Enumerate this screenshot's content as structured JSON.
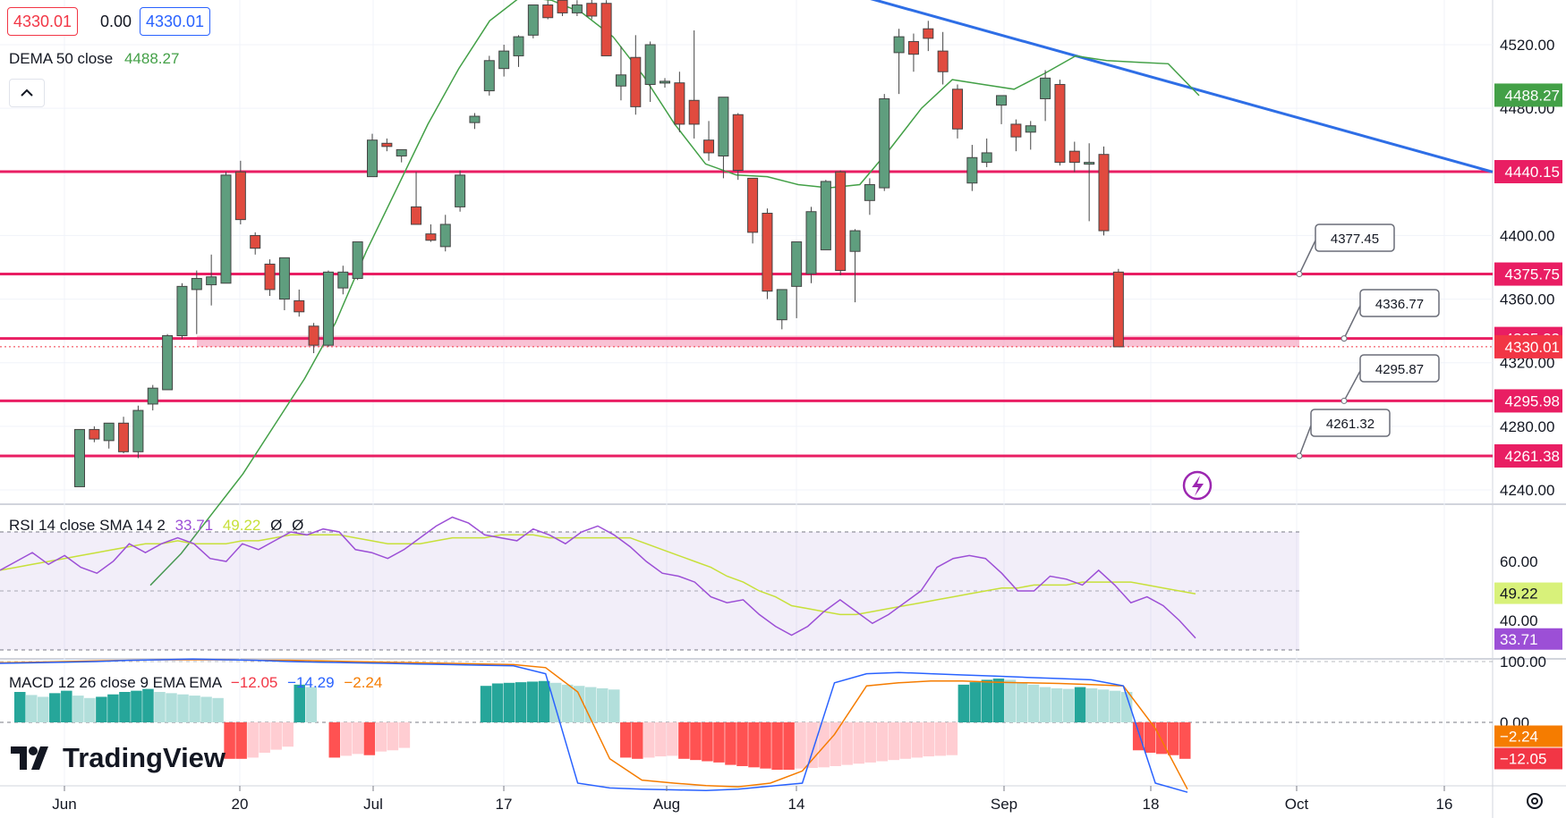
{
  "header": {
    "open_value": "4330.01",
    "change_value": "0.00",
    "close_value": "4330.01"
  },
  "indicators": {
    "dema": {
      "label": "DEMA 50 close",
      "value": "4488.27",
      "color": "#43a047"
    },
    "rsi": {
      "label": "RSI 14 close SMA 14 2",
      "value": "33.71",
      "sma_value": "49.22",
      "extra1": "Ø",
      "extra2": "Ø",
      "color": "#9c4fd6",
      "sma_color": "#c7e03a"
    },
    "macd": {
      "label": "MACD 12 26 close 9 EMA EMA",
      "hist_value": "−12.05",
      "macd_value": "−14.29",
      "signal_value": "−2.24",
      "macd_color": "#2962ff",
      "signal_color": "#f57c00"
    }
  },
  "brand": {
    "name": "TradingView"
  },
  "colors": {
    "up": "#5f9e7e",
    "down": "#e04b3f",
    "level_line": "#e91e63",
    "trend_line": "#2e6ee6",
    "grid": "#f0f3fa"
  },
  "chart_data": [
    {
      "type": "candlestick",
      "title": "",
      "x_tick_labels": [
        "Jun",
        "20",
        "Jul",
        "17",
        "Aug",
        "14",
        "Sep",
        "18",
        "Oct",
        "16"
      ],
      "y_ticks": [
        "4520.00",
        "4480.00",
        "4400.00",
        "4360.00",
        "4320.00",
        "4280.00",
        "4240.00"
      ],
      "ylim": [
        4228,
        4542
      ],
      "candles": [
        {
          "o": 4242,
          "h": 4278,
          "l": 4242,
          "c": 4278
        },
        {
          "o": 4278,
          "h": 4280,
          "l": 4270,
          "c": 4272
        },
        {
          "o": 4271,
          "h": 4282,
          "l": 4266,
          "c": 4282
        },
        {
          "o": 4282,
          "h": 4286,
          "l": 4263,
          "c": 4264
        },
        {
          "o": 4264,
          "h": 4293,
          "l": 4260,
          "c": 4290
        },
        {
          "o": 4294,
          "h": 4306,
          "l": 4290,
          "c": 4304
        },
        {
          "o": 4303,
          "h": 4338,
          "l": 4303,
          "c": 4337
        },
        {
          "o": 4337,
          "h": 4370,
          "l": 4335,
          "c": 4368
        },
        {
          "o": 4366,
          "h": 4378,
          "l": 4338,
          "c": 4373
        },
        {
          "o": 4369,
          "h": 4388,
          "l": 4356,
          "c": 4374
        },
        {
          "o": 4370,
          "h": 4440,
          "l": 4370,
          "c": 4438
        },
        {
          "o": 4440,
          "h": 4447,
          "l": 4407,
          "c": 4410
        },
        {
          "o": 4400,
          "h": 4402,
          "l": 4388,
          "c": 4392
        },
        {
          "o": 4382,
          "h": 4385,
          "l": 4362,
          "c": 4366
        },
        {
          "o": 4360,
          "h": 4386,
          "l": 4353,
          "c": 4386
        },
        {
          "o": 4359,
          "h": 4366,
          "l": 4349,
          "c": 4352
        },
        {
          "o": 4343,
          "h": 4345,
          "l": 4326,
          "c": 4331
        },
        {
          "o": 4331,
          "h": 4378,
          "l": 4330,
          "c": 4377
        },
        {
          "o": 4367,
          "h": 4381,
          "l": 4363,
          "c": 4377
        },
        {
          "o": 4373,
          "h": 4396,
          "l": 4372,
          "c": 4396
        },
        {
          "o": 4437,
          "h": 4464,
          "l": 4437,
          "c": 4460
        },
        {
          "o": 4458,
          "h": 4461,
          "l": 4453,
          "c": 4456
        },
        {
          "o": 4450,
          "h": 4453,
          "l": 4446,
          "c": 4454
        },
        {
          "o": 4418,
          "h": 4440,
          "l": 4408,
          "c": 4407
        },
        {
          "o": 4401,
          "h": 4407,
          "l": 4396,
          "c": 4397
        },
        {
          "o": 4393,
          "h": 4413,
          "l": 4390,
          "c": 4407
        },
        {
          "o": 4418,
          "h": 4441,
          "l": 4415,
          "c": 4438
        },
        {
          "o": 4471,
          "h": 4477,
          "l": 4467,
          "c": 4475
        },
        {
          "o": 4491,
          "h": 4513,
          "l": 4488,
          "c": 4510
        },
        {
          "o": 4505,
          "h": 4520,
          "l": 4500,
          "c": 4516
        },
        {
          "o": 4513,
          "h": 4526,
          "l": 4506,
          "c": 4525
        },
        {
          "o": 4526,
          "h": 4545,
          "l": 4524,
          "c": 4545
        },
        {
          "o": 4545,
          "h": 4548,
          "l": 4536,
          "c": 4537
        },
        {
          "o": 4548,
          "h": 4550,
          "l": 4538,
          "c": 4540
        },
        {
          "o": 4540,
          "h": 4548,
          "l": 4538,
          "c": 4545
        },
        {
          "o": 4546,
          "h": 4550,
          "l": 4536,
          "c": 4538
        },
        {
          "o": 4546,
          "h": 4548,
          "l": 4514,
          "c": 4513
        },
        {
          "o": 4494,
          "h": 4519,
          "l": 4485,
          "c": 4501
        },
        {
          "o": 4512,
          "h": 4526,
          "l": 4476,
          "c": 4481
        },
        {
          "o": 4495,
          "h": 4522,
          "l": 4484,
          "c": 4520
        },
        {
          "o": 4497,
          "h": 4499,
          "l": 4493,
          "c": 4497
        },
        {
          "o": 4496,
          "h": 4503,
          "l": 4465,
          "c": 4470
        },
        {
          "o": 4485,
          "h": 4529,
          "l": 4461,
          "c": 4470
        },
        {
          "o": 4460,
          "h": 4472,
          "l": 4447,
          "c": 4452
        },
        {
          "o": 4450,
          "h": 4487,
          "l": 4436,
          "c": 4487
        },
        {
          "o": 4476,
          "h": 4477,
          "l": 4435,
          "c": 4441
        },
        {
          "o": 4436,
          "h": 4436,
          "l": 4395,
          "c": 4402
        },
        {
          "o": 4414,
          "h": 4417,
          "l": 4360,
          "c": 4365
        },
        {
          "o": 4347,
          "h": 4366,
          "l": 4341,
          "c": 4366
        },
        {
          "o": 4368,
          "h": 4396,
          "l": 4348,
          "c": 4396
        },
        {
          "o": 4376,
          "h": 4418,
          "l": 4370,
          "c": 4415
        },
        {
          "o": 4391,
          "h": 4435,
          "l": 4391,
          "c": 4434
        },
        {
          "o": 4440,
          "h": 4441,
          "l": 4375,
          "c": 4378
        },
        {
          "o": 4390,
          "h": 4404,
          "l": 4358,
          "c": 4403
        },
        {
          "o": 4422,
          "h": 4436,
          "l": 4413,
          "c": 4432
        },
        {
          "o": 4430,
          "h": 4489,
          "l": 4428,
          "c": 4486
        },
        {
          "o": 4515,
          "h": 4530,
          "l": 4489,
          "c": 4525
        },
        {
          "o": 4522,
          "h": 4527,
          "l": 4503,
          "c": 4514
        },
        {
          "o": 4530,
          "h": 4535,
          "l": 4516,
          "c": 4524
        },
        {
          "o": 4516,
          "h": 4528,
          "l": 4495,
          "c": 4503
        },
        {
          "o": 4492,
          "h": 4495,
          "l": 4461,
          "c": 4467
        },
        {
          "o": 4433,
          "h": 4457,
          "l": 4428,
          "c": 4449
        },
        {
          "o": 4446,
          "h": 4461,
          "l": 4443,
          "c": 4452
        },
        {
          "o": 4482,
          "h": 4486,
          "l": 4470,
          "c": 4488
        },
        {
          "o": 4470,
          "h": 4473,
          "l": 4453,
          "c": 4462
        },
        {
          "o": 4465,
          "h": 4472,
          "l": 4454,
          "c": 4469
        },
        {
          "o": 4486,
          "h": 4504,
          "l": 4472,
          "c": 4499
        },
        {
          "o": 4495,
          "h": 4498,
          "l": 4444,
          "c": 4446
        },
        {
          "o": 4453,
          "h": 4459,
          "l": 4440,
          "c": 4446
        },
        {
          "o": 4445,
          "h": 4458,
          "l": 4409,
          "c": 4446
        },
        {
          "o": 4451,
          "h": 4456,
          "l": 4400,
          "c": 4403
        },
        {
          "o": 4377,
          "h": 4379,
          "l": 4330,
          "c": 4330
        }
      ],
      "horizontal_levels": [
        "4440.15",
        "4375.75",
        "4335.23",
        "4295.98",
        "4261.38"
      ],
      "callouts": [
        "4377.45",
        "4336.77",
        "4295.87",
        "4261.32"
      ],
      "zone": {
        "from": 4330,
        "to": 4337
      },
      "trendline": {
        "start": 4570,
        "end": 4440
      },
      "dema_series": [
        4180,
        4200,
        4225,
        4250,
        4280,
        4310,
        4345,
        4390,
        4430,
        4470,
        4505,
        4535,
        4550,
        4548,
        4540,
        4525,
        4500,
        4470,
        4445,
        4438,
        4437,
        4432,
        4430,
        4432,
        4455,
        4480,
        4498,
        4495,
        4492,
        4502,
        4513,
        4510,
        4509,
        4508,
        4488
      ],
      "price_labels": {
        "dema": "4488.27",
        "last": "4330.01"
      }
    },
    {
      "type": "line",
      "title": "",
      "y_ticks": [
        "60.00",
        "40.00"
      ],
      "ylim": [
        20,
        80
      ],
      "band": [
        30,
        70
      ],
      "rsi": [
        57,
        60,
        63,
        59,
        62,
        58,
        56,
        60,
        66,
        63,
        66,
        68,
        66,
        61,
        60,
        66,
        64,
        67,
        70,
        69,
        71,
        70,
        64,
        63,
        61,
        64,
        68,
        72,
        75,
        73,
        69,
        68,
        67,
        71,
        69,
        66,
        70,
        72,
        69,
        65,
        60,
        56,
        55,
        53,
        48,
        46,
        47,
        42,
        38,
        35,
        38,
        43,
        47,
        43,
        39,
        42,
        46,
        50,
        58,
        61,
        62,
        61,
        56,
        50,
        50,
        55,
        54,
        52,
        57,
        52,
        46,
        48,
        45,
        40,
        34
      ],
      "rsi_sma": [
        57,
        58,
        59,
        60,
        61,
        62,
        63,
        64,
        65,
        66,
        66,
        67,
        66,
        66,
        66,
        67,
        67,
        68,
        69,
        69,
        69,
        69,
        68,
        67,
        66,
        66,
        66,
        67,
        68,
        68,
        68,
        69,
        69,
        69,
        68,
        68,
        68,
        68,
        68,
        68,
        66,
        64,
        62,
        60,
        58,
        55,
        53,
        50,
        48,
        45,
        44,
        43,
        42,
        42,
        43,
        44,
        45,
        46,
        47,
        48,
        49,
        50,
        51,
        51,
        52,
        52,
        52,
        53,
        53,
        53,
        53,
        52,
        51,
        50,
        49
      ],
      "price_labels": {
        "sma": "49.22",
        "rsi": "33.71"
      }
    },
    {
      "type": "bar",
      "title": "",
      "y_ticks": [
        "100.00",
        "0.00"
      ],
      "ylim": [
        -120,
        115
      ],
      "histogram": [
        50,
        45,
        42,
        48,
        52,
        44,
        40,
        42,
        46,
        50,
        52,
        55,
        50,
        48,
        46,
        44,
        42,
        40,
        -60,
        -60,
        -58,
        -50,
        -45,
        -40,
        62,
        58,
        0,
        -58,
        -55,
        -52,
        -54,
        -48,
        -46,
        -42,
        0,
        0,
        0,
        0,
        0,
        0,
        60,
        64,
        65,
        66,
        67,
        68,
        65,
        62,
        60,
        58,
        56,
        54,
        -58,
        -60,
        -58,
        -56,
        -55,
        -60,
        -62,
        -64,
        -66,
        -70,
        -72,
        -74,
        -76,
        -78,
        -78,
        -76,
        -75,
        -74,
        -72,
        -70,
        -68,
        -66,
        -64,
        -62,
        -60,
        -58,
        -56,
        -55,
        -54,
        62,
        66,
        70,
        72,
        70,
        66,
        62,
        58,
        56,
        55,
        58,
        56,
        54,
        52,
        50,
        -46,
        -50,
        -52,
        -54,
        -60
      ],
      "macd": [
        97,
        98,
        99,
        100,
        102,
        103,
        104,
        103,
        102,
        100,
        99,
        98,
        97,
        96,
        95,
        94,
        93,
        80,
        -100,
        -108,
        -110,
        -111,
        -112,
        -110,
        -105,
        -100,
        65,
        80,
        82,
        80,
        78,
        76,
        74,
        72,
        70,
        60,
        -100,
        -115
      ],
      "signal": [
        98,
        99,
        100,
        101,
        102,
        103,
        103,
        103,
        102,
        102,
        101,
        100,
        99,
        98,
        97,
        96,
        95,
        90,
        50,
        -60,
        -95,
        -100,
        -104,
        -106,
        -100,
        -80,
        -20,
        60,
        65,
        68,
        68,
        66,
        65,
        64,
        62,
        60,
        -10,
        -110
      ],
      "price_labels": {
        "signal": "−2.24",
        "hist": "−12.05"
      }
    }
  ]
}
